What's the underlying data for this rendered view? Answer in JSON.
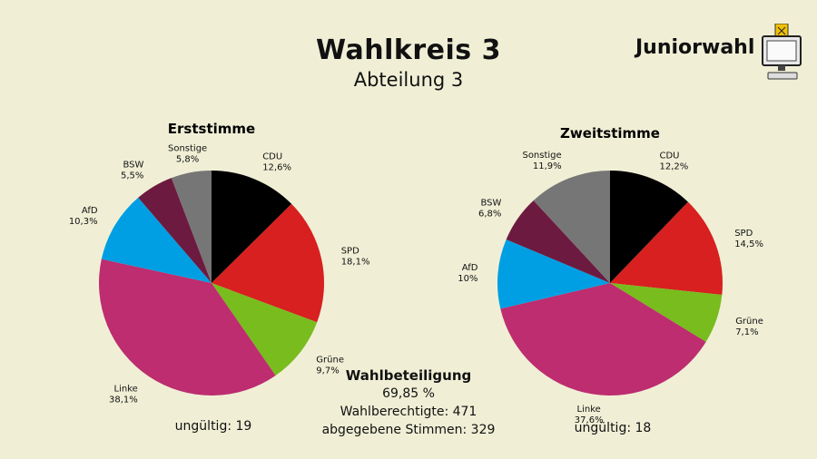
{
  "header": {
    "title": "Wahlkreis 3",
    "subtitle": "Abteilung 3",
    "logo_text": "Juniorwahl"
  },
  "turnout": {
    "heading": "Wahlbeteiligung",
    "percent": "69,85 %",
    "eligible": "Wahlberechtigte: 471",
    "cast": "abgegebene Stimmen: 329"
  },
  "invalid": {
    "erst": "ungültig: 19",
    "zweit": "ungültig: 18"
  },
  "colors": {
    "CDU": "#000000",
    "SPD": "#d7201f",
    "Grüne": "#78bc1e",
    "Linke": "#bd2d6f",
    "AfD": "#009fe3",
    "BSW": "#6d1a40",
    "Sonstige": "#767676"
  },
  "chart_data": [
    {
      "type": "pie",
      "title": "Erststimme",
      "categories": [
        "CDU",
        "SPD",
        "Grüne",
        "Linke",
        "AfD",
        "BSW",
        "Sonstige"
      ],
      "values": [
        12.6,
        18.1,
        9.7,
        38.1,
        10.3,
        5.5,
        5.8
      ],
      "value_labels": [
        "12,6%",
        "18,1%",
        "9,7%",
        "38,1%",
        "10,3%",
        "5,5%",
        "5,8%"
      ]
    },
    {
      "type": "pie",
      "title": "Zweitstimme",
      "categories": [
        "CDU",
        "SPD",
        "Grüne",
        "Linke",
        "AfD",
        "BSW",
        "Sonstige"
      ],
      "values": [
        12.2,
        14.5,
        7.1,
        37.6,
        10.0,
        6.8,
        11.9
      ],
      "value_labels": [
        "12,2%",
        "14,5%",
        "7,1%",
        "37,6%",
        "10%",
        "6,8%",
        "11,9%"
      ]
    }
  ]
}
